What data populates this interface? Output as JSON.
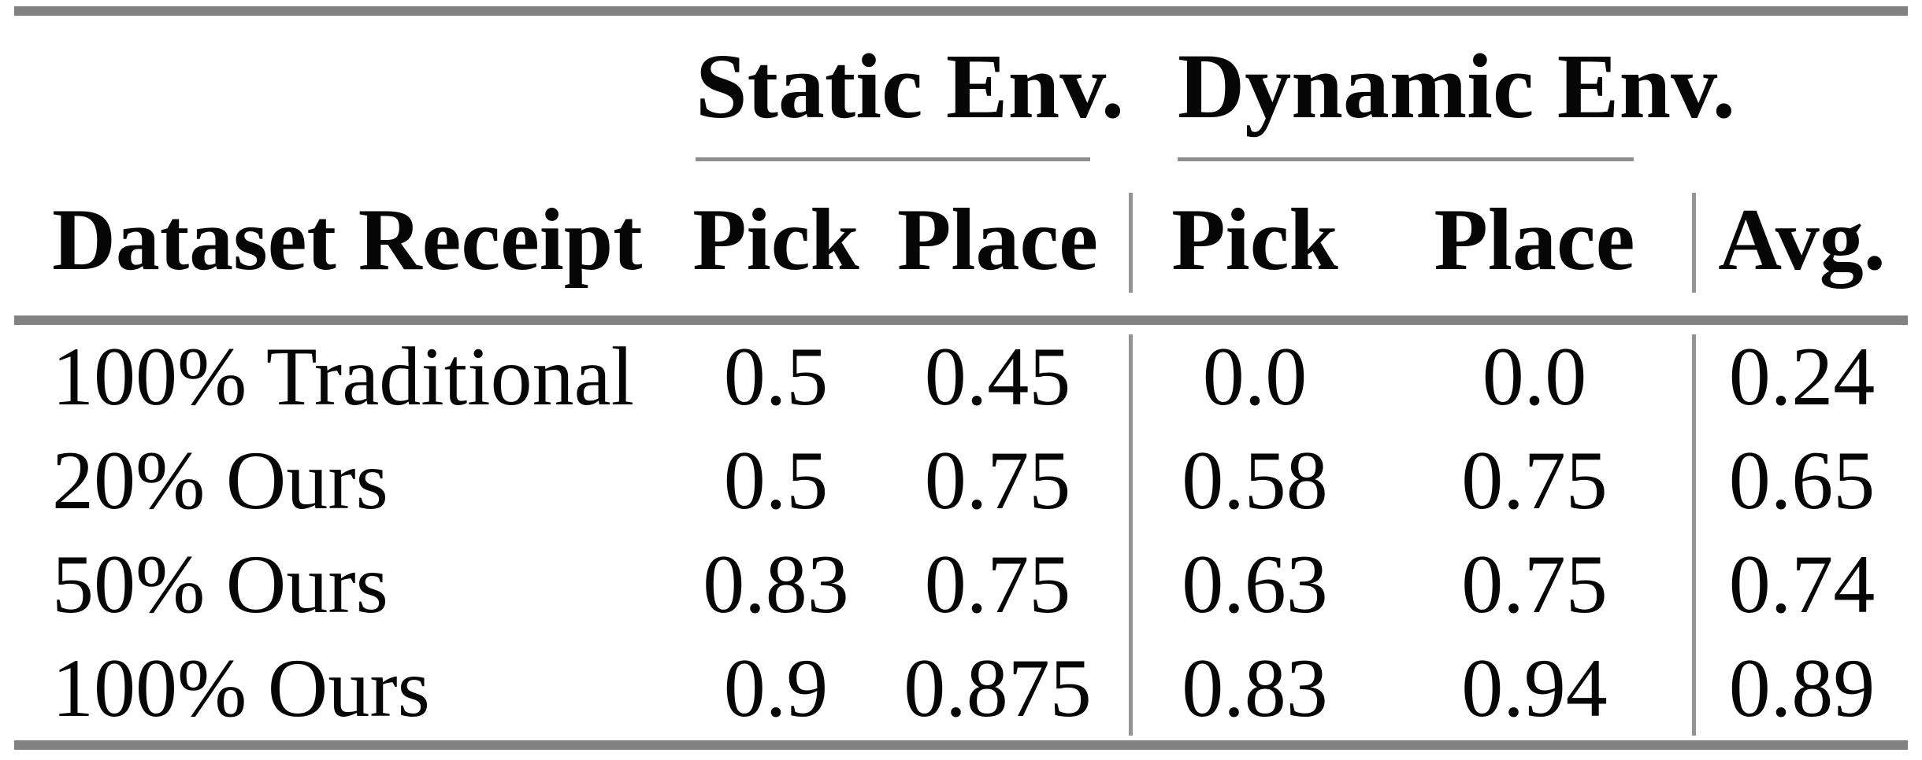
{
  "meta": {
    "background_color": "#ffffff",
    "text_color": "#060606",
    "thick_rule_color": "#828282",
    "thin_rule_color": "#949494"
  },
  "table": {
    "groups": {
      "static": "Static Env.",
      "dynamic": "Dynamic Env."
    },
    "headers": {
      "dataset": "Dataset Receipt",
      "static_pick": "Pick",
      "static_place": "Place",
      "dynamic_pick": "Pick",
      "dynamic_place": "Place",
      "avg": "Avg."
    },
    "rows": [
      {
        "label": "100% Traditional",
        "static_pick": "0.5",
        "static_place": "0.45",
        "dynamic_pick": "0.0",
        "dynamic_place": "0.0",
        "avg": "0.24"
      },
      {
        "label": "20% Ours",
        "static_pick": "0.5",
        "static_place": "0.75",
        "dynamic_pick": "0.58",
        "dynamic_place": "0.75",
        "avg": "0.65"
      },
      {
        "label": "50% Ours",
        "static_pick": "0.83",
        "static_place": "0.75",
        "dynamic_pick": "0.63",
        "dynamic_place": "0.75",
        "avg": "0.74"
      },
      {
        "label": "100% Ours",
        "static_pick": "0.9",
        "static_place": "0.875",
        "dynamic_pick": "0.83",
        "dynamic_place": "0.94",
        "avg": "0.89"
      }
    ]
  },
  "chart_data": {
    "type": "table",
    "title": "",
    "column_groups": [
      "",
      "Static Env.",
      "Static Env.",
      "Dynamic Env.",
      "Dynamic Env.",
      ""
    ],
    "columns": [
      "Dataset Receipt",
      "Pick",
      "Place",
      "Pick",
      "Place",
      "Avg."
    ],
    "rows": [
      [
        "100% Traditional",
        0.5,
        0.45,
        0.0,
        0.0,
        0.24
      ],
      [
        "20% Ours",
        0.5,
        0.75,
        0.58,
        0.75,
        0.65
      ],
      [
        "50% Ours",
        0.83,
        0.75,
        0.63,
        0.75,
        0.74
      ],
      [
        "100% Ours",
        0.9,
        0.875,
        0.83,
        0.94,
        0.89
      ]
    ]
  }
}
